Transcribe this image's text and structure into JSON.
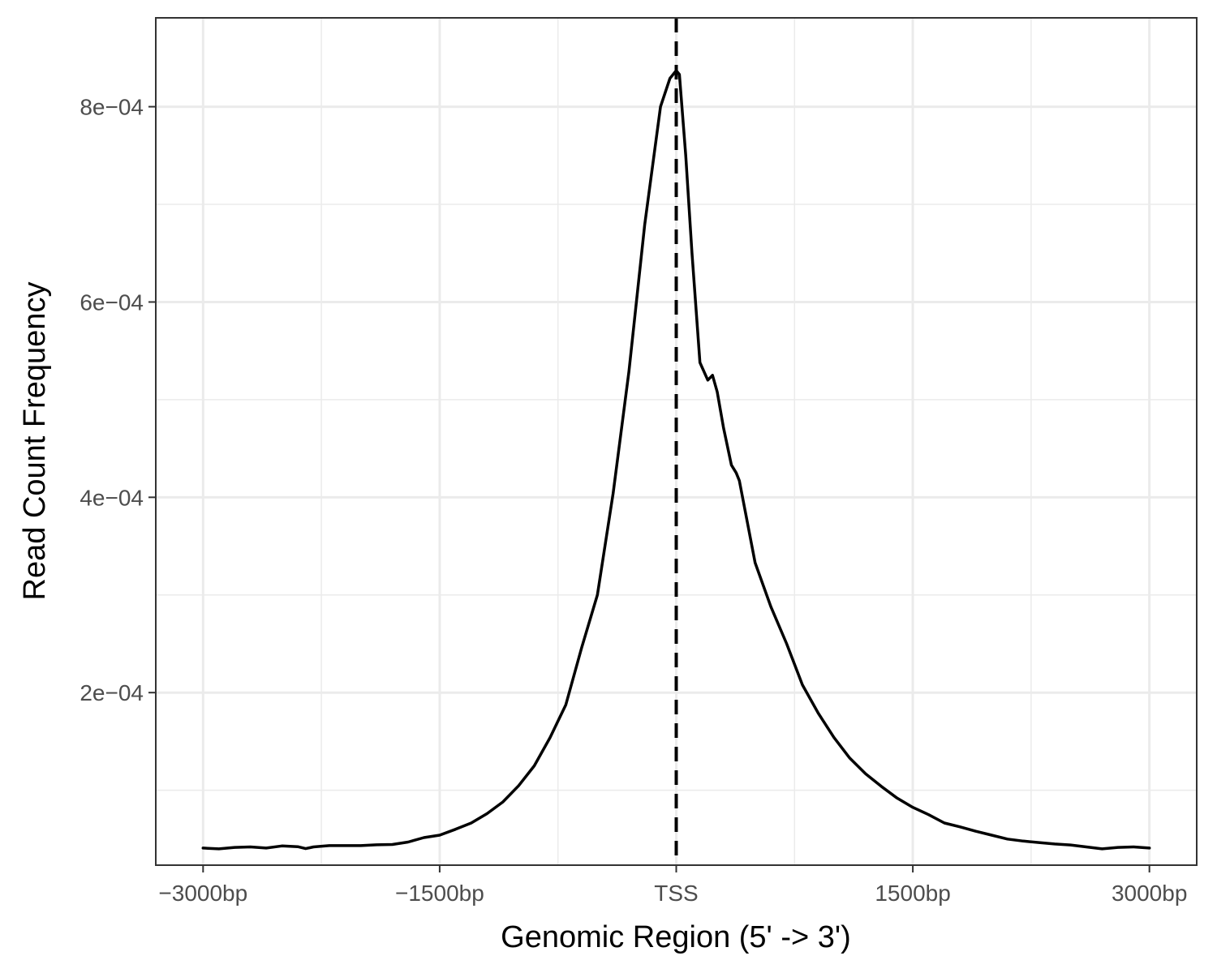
{
  "chart_data": {
    "type": "line",
    "title": "",
    "xlabel": "Genomic Region (5' -> 3')",
    "ylabel": "Read Count Frequency",
    "xlim": [
      -3300,
      3300
    ],
    "ylim": [
      2.33e-05,
      0.000891
    ],
    "x_ticks": [
      {
        "value": -3000,
        "label": "−3000bp"
      },
      {
        "value": -1500,
        "label": "−1500bp"
      },
      {
        "value": 0,
        "label": "TSS"
      },
      {
        "value": 1500,
        "label": "1500bp"
      },
      {
        "value": 3000,
        "label": "3000bp"
      }
    ],
    "y_ticks": [
      {
        "value": 0.0002,
        "label": "2e−04"
      },
      {
        "value": 0.0004,
        "label": "4e−04"
      },
      {
        "value": 0.0006,
        "label": "6e−04"
      },
      {
        "value": 0.0008,
        "label": "8e−04"
      }
    ],
    "x_minor": [
      -2250,
      -750,
      750,
      2250
    ],
    "y_minor": [
      0.0001,
      0.0003,
      0.0005,
      0.0007
    ],
    "grid": true,
    "legend": "none",
    "vline": {
      "x": 0,
      "style": "dashed",
      "color": "#000000"
    },
    "line_color": "#000000",
    "series": [
      {
        "values": [
          {
            "x": -3000,
            "y": 4.08e-05
          },
          {
            "x": -2900,
            "y": 4e-05
          },
          {
            "x": -2800,
            "y": 4.15e-05
          },
          {
            "x": -2700,
            "y": 4.2e-05
          },
          {
            "x": -2600,
            "y": 4.08e-05
          },
          {
            "x": -2500,
            "y": 4.3e-05
          },
          {
            "x": -2400,
            "y": 4.22e-05
          },
          {
            "x": -2350,
            "y": 4.02e-05
          },
          {
            "x": -2300,
            "y": 4.2e-05
          },
          {
            "x": -2200,
            "y": 4.33e-05
          },
          {
            "x": -2100,
            "y": 4.33e-05
          },
          {
            "x": -2000,
            "y": 4.33e-05
          },
          {
            "x": -1900,
            "y": 4.41e-05
          },
          {
            "x": -1800,
            "y": 4.45e-05
          },
          {
            "x": -1700,
            "y": 4.7e-05
          },
          {
            "x": -1600,
            "y": 5.15e-05
          },
          {
            "x": -1500,
            "y": 5.4e-05
          },
          {
            "x": -1400,
            "y": 6e-05
          },
          {
            "x": -1300,
            "y": 6.65e-05
          },
          {
            "x": -1200,
            "y": 7.6e-05
          },
          {
            "x": -1100,
            "y": 8.8e-05
          },
          {
            "x": -1000,
            "y": 0.0001045
          },
          {
            "x": -900,
            "y": 0.000125
          },
          {
            "x": -800,
            "y": 0.000154
          },
          {
            "x": -700,
            "y": 0.0001875
          },
          {
            "x": -600,
            "y": 0.000246
          },
          {
            "x": -500,
            "y": 0.0003
          },
          {
            "x": -400,
            "y": 0.000404
          },
          {
            "x": -300,
            "y": 0.000529
          },
          {
            "x": -200,
            "y": 0.000679
          },
          {
            "x": -100,
            "y": 0.0008
          },
          {
            "x": -40,
            "y": 0.000829
          },
          {
            "x": 0,
            "y": 0.000837
          },
          {
            "x": 20,
            "y": 0.000833
          },
          {
            "x": 60,
            "y": 0.00075
          },
          {
            "x": 100,
            "y": 0.00065
          },
          {
            "x": 150,
            "y": 0.000538
          },
          {
            "x": 200,
            "y": 0.00052
          },
          {
            "x": 230,
            "y": 0.000525
          },
          {
            "x": 260,
            "y": 0.000508
          },
          {
            "x": 300,
            "y": 0.000471
          },
          {
            "x": 350,
            "y": 0.000433
          },
          {
            "x": 380,
            "y": 0.000425
          },
          {
            "x": 400,
            "y": 0.000417
          },
          {
            "x": 450,
            "y": 0.000375
          },
          {
            "x": 500,
            "y": 0.000333
          },
          {
            "x": 600,
            "y": 0.000288
          },
          {
            "x": 700,
            "y": 0.00025
          },
          {
            "x": 800,
            "y": 0.000208
          },
          {
            "x": 900,
            "y": 0.000179
          },
          {
            "x": 1000,
            "y": 0.000154
          },
          {
            "x": 1100,
            "y": 0.000133
          },
          {
            "x": 1200,
            "y": 0.000117
          },
          {
            "x": 1300,
            "y": 0.000104
          },
          {
            "x": 1400,
            "y": 9.2e-05
          },
          {
            "x": 1500,
            "y": 8.25e-05
          },
          {
            "x": 1600,
            "y": 7.5e-05
          },
          {
            "x": 1700,
            "y": 6.65e-05
          },
          {
            "x": 1800,
            "y": 6.25e-05
          },
          {
            "x": 1900,
            "y": 5.8e-05
          },
          {
            "x": 2000,
            "y": 5.4e-05
          },
          {
            "x": 2100,
            "y": 5e-05
          },
          {
            "x": 2200,
            "y": 4.8e-05
          },
          {
            "x": 2300,
            "y": 4.65e-05
          },
          {
            "x": 2400,
            "y": 4.5e-05
          },
          {
            "x": 2500,
            "y": 4.4e-05
          },
          {
            "x": 2600,
            "y": 4.2e-05
          },
          {
            "x": 2700,
            "y": 4e-05
          },
          {
            "x": 2800,
            "y": 4.15e-05
          },
          {
            "x": 2900,
            "y": 4.2e-05
          },
          {
            "x": 3000,
            "y": 4.08e-05
          }
        ]
      }
    ]
  }
}
